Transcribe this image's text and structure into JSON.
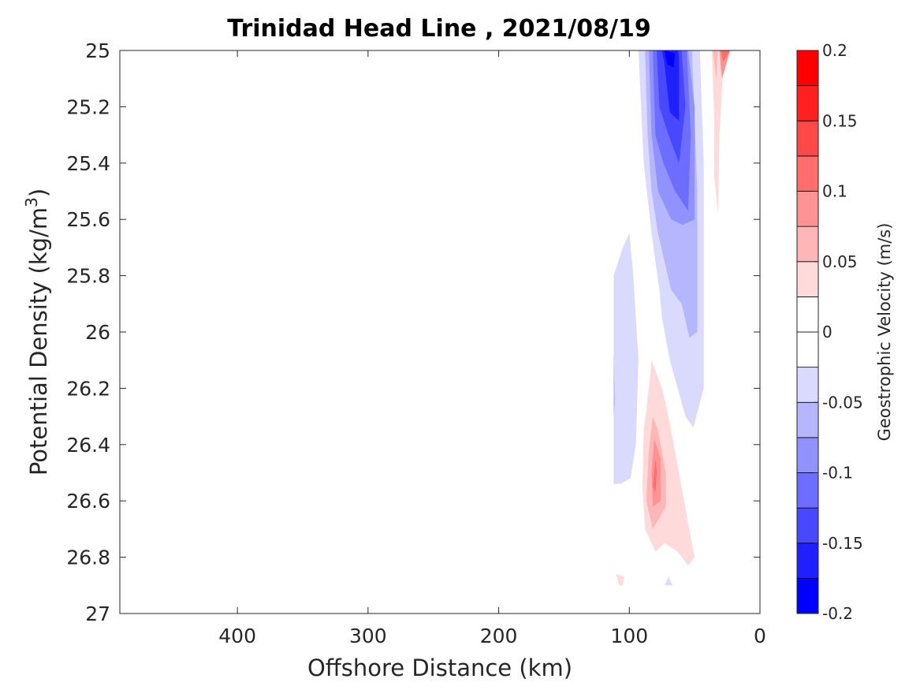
{
  "chart_data": {
    "type": "contour",
    "title": "Trinidad Head Line , 2021/08/19",
    "xlabel": "Offshore Distance (km)",
    "ylabel_main": "Potential Density (kg/m",
    "ylabel_sup": "3",
    "ylabel_close": ")",
    "xlim": [
      490,
      0
    ],
    "ylim": [
      25,
      27
    ],
    "y_reversed": true,
    "x_ticks": [
      400,
      300,
      200,
      100,
      0
    ],
    "x_tick_labels": [
      "400",
      "300",
      "200",
      "100",
      "0"
    ],
    "y_ticks": [
      25,
      25.2,
      25.4,
      25.6,
      25.8,
      26,
      26.2,
      26.4,
      26.6,
      26.8,
      27
    ],
    "y_tick_labels": [
      "25",
      "25.2",
      "25.4",
      "25.6",
      "25.8",
      "26",
      "26.2",
      "26.4",
      "26.6",
      "26.8",
      "27"
    ],
    "colorbar": {
      "label": "Geostrophic Velocity (m/s)",
      "range": [
        -0.2,
        0.2
      ],
      "level_step": 0.025,
      "tick_values": [
        0.2,
        0.15,
        0.1,
        0.05,
        0,
        -0.05,
        -0.1,
        -0.15,
        -0.2
      ],
      "tick_labels": [
        "0.2",
        "0.15",
        "0.1",
        "0.05",
        "0",
        "-0.05",
        "-0.1",
        "-0.15",
        "-0.2"
      ],
      "colors": [
        "#0000ff",
        "#2020ff",
        "#4848ff",
        "#6d6dff",
        "#9292ff",
        "#b6b6ff",
        "#dadaff",
        "#ffffff",
        "#ffffff",
        "#ffdada",
        "#ffb6b6",
        "#ff9292",
        "#ff6d6d",
        "#ff4848",
        "#ff2020",
        "#ff0000"
      ]
    },
    "regions": [
      {
        "level": -0.025,
        "points": [
          [
            112,
            25.8
          ],
          [
            105,
            25.7
          ],
          [
            100,
            25.65
          ],
          [
            97,
            25.8
          ],
          [
            93,
            26.1
          ],
          [
            95,
            26.4
          ],
          [
            99,
            26.52
          ],
          [
            107,
            26.54
          ],
          [
            112,
            26.54
          ]
        ]
      },
      {
        "level": -0.025,
        "points": [
          [
            93,
            25
          ],
          [
            89,
            25.4
          ],
          [
            83,
            25.65
          ],
          [
            77,
            25.85
          ],
          [
            75,
            25.95
          ],
          [
            69,
            26.1
          ],
          [
            57,
            26.3
          ],
          [
            51,
            26.34
          ],
          [
            43,
            26.2
          ],
          [
            43,
            25.4
          ],
          [
            46,
            25
          ],
          [
            60,
            25
          ]
        ]
      },
      {
        "level": -0.05,
        "points": [
          [
            88,
            25
          ],
          [
            86,
            25.3
          ],
          [
            83,
            25.5
          ],
          [
            78,
            25.65
          ],
          [
            68,
            25.85
          ],
          [
            60,
            25.9
          ],
          [
            54,
            26.02
          ],
          [
            48,
            26
          ],
          [
            48,
            25.5
          ],
          [
            52,
            25
          ]
        ]
      },
      {
        "level": -0.075,
        "points": [
          [
            85,
            25
          ],
          [
            83,
            25.3
          ],
          [
            78,
            25.5
          ],
          [
            68,
            25.6
          ],
          [
            59,
            25.62
          ],
          [
            50,
            25.6
          ],
          [
            50,
            25.2
          ],
          [
            55,
            25
          ]
        ]
      },
      {
        "level": -0.1,
        "points": [
          [
            82,
            25
          ],
          [
            80,
            25.3
          ],
          [
            74,
            25.4
          ],
          [
            65,
            25.5
          ],
          [
            55,
            25.57
          ],
          [
            53,
            25.3
          ],
          [
            56,
            25
          ]
        ]
      },
      {
        "level": -0.125,
        "points": [
          [
            79,
            25
          ],
          [
            77,
            25.2
          ],
          [
            70,
            25.3
          ],
          [
            62,
            25.4
          ],
          [
            57,
            25.2
          ],
          [
            60,
            25
          ]
        ]
      },
      {
        "level": -0.15,
        "points": [
          [
            75,
            25
          ],
          [
            73,
            25.05
          ],
          [
            69,
            25.22
          ],
          [
            62,
            25.25
          ],
          [
            62,
            25.02
          ],
          [
            63,
            25
          ]
        ]
      },
      {
        "level": -0.175,
        "points": [
          [
            73,
            25
          ],
          [
            71,
            25.05
          ],
          [
            66,
            25.06
          ],
          [
            65,
            25.01
          ]
        ]
      },
      {
        "level": -0.05,
        "points": [
          [
            112,
            26.08
          ],
          [
            111,
            26.25
          ],
          [
            112,
            26.3
          ]
        ]
      },
      {
        "level": -0.025,
        "points": [
          [
            73,
            26.9
          ],
          [
            70,
            26.87
          ],
          [
            67,
            26.9
          ]
        ]
      },
      {
        "level": 0.025,
        "points": [
          [
            83,
            26.1
          ],
          [
            85,
            26.2
          ],
          [
            89,
            26.35
          ],
          [
            90,
            26.55
          ],
          [
            88,
            26.7
          ],
          [
            80,
            26.78
          ],
          [
            73,
            26.75
          ],
          [
            63,
            26.78
          ],
          [
            55,
            26.83
          ],
          [
            50,
            26.8
          ],
          [
            55,
            26.68
          ],
          [
            62,
            26.5
          ],
          [
            70,
            26.3
          ],
          [
            75,
            26.2
          ]
        ]
      },
      {
        "level": 0.05,
        "points": [
          [
            82,
            26.3
          ],
          [
            85,
            26.42
          ],
          [
            87,
            26.6
          ],
          [
            82,
            26.7
          ],
          [
            72,
            26.62
          ],
          [
            72,
            26.5
          ],
          [
            78,
            26.35
          ]
        ]
      },
      {
        "level": 0.075,
        "points": [
          [
            81,
            26.38
          ],
          [
            83,
            26.5
          ],
          [
            82,
            26.62
          ],
          [
            76,
            26.6
          ],
          [
            76,
            26.45
          ]
        ]
      },
      {
        "level": 0.1,
        "points": [
          [
            80,
            26.45
          ],
          [
            82,
            26.55
          ],
          [
            80,
            26.57
          ],
          [
            79,
            26.5
          ]
        ]
      },
      {
        "level": 0.025,
        "points": [
          [
            37,
            25
          ],
          [
            36,
            25.1
          ],
          [
            35,
            25.25
          ],
          [
            35,
            25.45
          ],
          [
            32,
            25.58
          ],
          [
            31,
            25.3
          ],
          [
            28,
            25.05
          ],
          [
            25,
            25
          ]
        ]
      },
      {
        "level": 0.05,
        "points": [
          [
            36,
            25
          ],
          [
            34,
            25.08
          ],
          [
            33,
            25.1
          ],
          [
            33,
            25.04
          ],
          [
            32,
            25
          ]
        ]
      },
      {
        "level": 0.075,
        "points": [
          [
            31,
            25
          ],
          [
            30,
            25.06
          ],
          [
            29,
            25.1
          ],
          [
            24,
            25.02
          ],
          [
            23,
            25
          ]
        ]
      },
      {
        "level": 0.1,
        "points": [
          [
            30,
            25
          ],
          [
            28,
            25.04
          ],
          [
            23,
            25
          ]
        ]
      },
      {
        "level": 0.025,
        "points": [
          [
            110,
            26.86
          ],
          [
            108,
            26.9
          ],
          [
            105,
            26.9
          ],
          [
            104,
            26.87
          ]
        ]
      }
    ]
  }
}
